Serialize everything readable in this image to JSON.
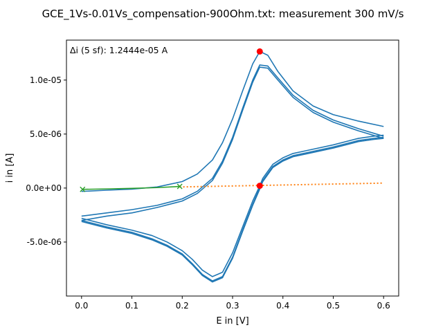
{
  "chart_data": {
    "type": "line",
    "title": "GCE_1Vs-0.01Vs_compensation-900Ohm.txt: measurement 300 mV/s",
    "xlabel": "E in [V]",
    "ylabel": "i in [A]",
    "xlim": [
      -0.03,
      0.63
    ],
    "ylim": [
      -1e-05,
      1.37e-05
    ],
    "xticks": [
      0.0,
      0.1,
      0.2,
      0.3,
      0.4,
      0.5,
      0.6
    ],
    "xtick_labels": [
      "0.0",
      "0.1",
      "0.2",
      "0.3",
      "0.4",
      "0.5",
      "0.6"
    ],
    "yticks": [
      -5e-06,
      0.0,
      5e-06,
      1e-05
    ],
    "ytick_labels": [
      "-5.0e-06",
      "0.0e+00",
      "5.0e-06",
      "1.0e-05"
    ],
    "grid": false,
    "annotation": "Δi (5 sf): 1.2444e-05 A",
    "colors": {
      "cv": "#1f77b4",
      "baseline": "#ff7f0e",
      "fit": "#2ca02c",
      "peak": "#ff0000"
    },
    "series": [
      {
        "style": "line",
        "color": "#1f77b4",
        "segments": [
          {
            "x": [
              0.0,
              0.05,
              0.1,
              0.15,
              0.2,
              0.23,
              0.26,
              0.28,
              0.3,
              0.32,
              0.34,
              0.354,
              0.37,
              0.39,
              0.42,
              0.46,
              0.5,
              0.55,
              0.6
            ],
            "y": [
              -3.1e-07,
              -2e-07,
              -1e-07,
              1e-07,
              6e-07,
              1.3e-06,
              2.6e-06,
              4.2e-06,
              6.4e-06,
              9e-06,
              1.15e-05,
              1.265e-05,
              1.23e-05,
              1.08e-05,
              9e-06,
              7.6e-06,
              6.8e-06,
              6.2e-06,
              5.7e-06
            ]
          },
          {
            "x": [
              0.6,
              0.58,
              0.55,
              0.5,
              0.45,
              0.42,
              0.4,
              0.38,
              0.36,
              0.354,
              0.34,
              0.32,
              0.3,
              0.28,
              0.26,
              0.24,
              0.22,
              0.2,
              0.17,
              0.14,
              0.1,
              0.05,
              0.0
            ],
            "y": [
              4.9e-06,
              4.8e-06,
              4.6e-06,
              4e-06,
              3.5e-06,
              3.2e-06,
              2.8e-06,
              2.2e-06,
              9e-07,
              2e-07,
              -1.2e-06,
              -3.6e-06,
              -6e-06,
              -7.8e-06,
              -8.2e-06,
              -7.6e-06,
              -6.6e-06,
              -5.8e-06,
              -5e-06,
              -4.4e-06,
              -3.9e-06,
              -3.4e-06,
              -2.8e-06
            ]
          },
          {
            "x": [
              0.0,
              0.05,
              0.1,
              0.15,
              0.2,
              0.23,
              0.26,
              0.28,
              0.3,
              0.32,
              0.34,
              0.354,
              0.37,
              0.39,
              0.42,
              0.46,
              0.5,
              0.55,
              0.6
            ],
            "y": [
              -2.6e-06,
              -2.3e-06,
              -2e-06,
              -1.6e-06,
              -1e-06,
              -3e-07,
              9e-07,
              2.5e-06,
              4.7e-06,
              7.4e-06,
              1e-05,
              1.14e-05,
              1.13e-05,
              1.02e-05,
              8.6e-06,
              7.2e-06,
              6.3e-06,
              5.5e-06,
              4.8e-06
            ]
          },
          {
            "x": [
              0.6,
              0.58,
              0.55,
              0.5,
              0.45,
              0.42,
              0.4,
              0.38,
              0.36,
              0.354,
              0.34,
              0.32,
              0.3,
              0.28,
              0.26,
              0.24,
              0.22,
              0.2,
              0.17,
              0.14,
              0.1,
              0.05,
              0.0
            ],
            "y": [
              4.7e-06,
              4.6e-06,
              4.4e-06,
              3.8e-06,
              3.3e-06,
              3e-06,
              2.6e-06,
              2e-06,
              7e-07,
              0.0,
              -1.5e-06,
              -3.9e-06,
              -6.4e-06,
              -8.2e-06,
              -8.6e-06,
              -8e-06,
              -7e-06,
              -6.1e-06,
              -5.3e-06,
              -4.7e-06,
              -4.1e-06,
              -3.6e-06,
              -3e-06
            ]
          },
          {
            "x": [
              0.0,
              0.05,
              0.1,
              0.15,
              0.2,
              0.23,
              0.26,
              0.28,
              0.3,
              0.32,
              0.34,
              0.354,
              0.37,
              0.39,
              0.42,
              0.46,
              0.5,
              0.55,
              0.6
            ],
            "y": [
              -3e-06,
              -2.6e-06,
              -2.3e-06,
              -1.8e-06,
              -1.2e-06,
              -5e-07,
              7e-07,
              2.3e-06,
              4.5e-06,
              7.2e-06,
              9.8e-06,
              1.12e-05,
              1.11e-05,
              1e-05,
              8.4e-06,
              7e-06,
              6.1e-06,
              5.3e-06,
              4.6e-06
            ]
          },
          {
            "x": [
              0.6,
              0.58,
              0.55,
              0.5,
              0.45,
              0.42,
              0.4,
              0.38,
              0.36,
              0.354,
              0.34,
              0.32,
              0.3,
              0.28,
              0.26,
              0.24,
              0.22,
              0.2,
              0.17,
              0.14,
              0.1,
              0.05,
              0.0
            ],
            "y": [
              4.6e-06,
              4.5e-06,
              4.3e-06,
              3.7e-06,
              3.2e-06,
              2.9e-06,
              2.5e-06,
              1.9e-06,
              6e-07,
              -1e-07,
              -1.6e-06,
              -4e-06,
              -6.5e-06,
              -8.3e-06,
              -8.7e-06,
              -8.1e-06,
              -7.1e-06,
              -6.2e-06,
              -5.4e-06,
              -4.8e-06,
              -4.2e-06,
              -3.7e-06,
              -3.1e-06
            ]
          }
        ]
      },
      {
        "style": "dotted",
        "color": "#ff7f0e",
        "x": [
          0.195,
          0.6
        ],
        "y": [
          1e-07,
          4.6e-07
        ]
      },
      {
        "style": "line",
        "color": "#2ca02c",
        "x": [
          0.002,
          0.05,
          0.1,
          0.15,
          0.195
        ],
        "y": [
          -1.2e-07,
          -8e-08,
          -3e-08,
          4e-08,
          1.5e-07
        ]
      },
      {
        "style": "markers-x",
        "color": "#2ca02c",
        "x": [
          0.002,
          0.195
        ],
        "y": [
          -1.2e-07,
          1.5e-07
        ]
      },
      {
        "style": "markers-dot",
        "color": "#ff0000",
        "x": [
          0.354,
          0.354
        ],
        "y": [
          1.265e-05,
          2.1e-07
        ]
      }
    ]
  }
}
